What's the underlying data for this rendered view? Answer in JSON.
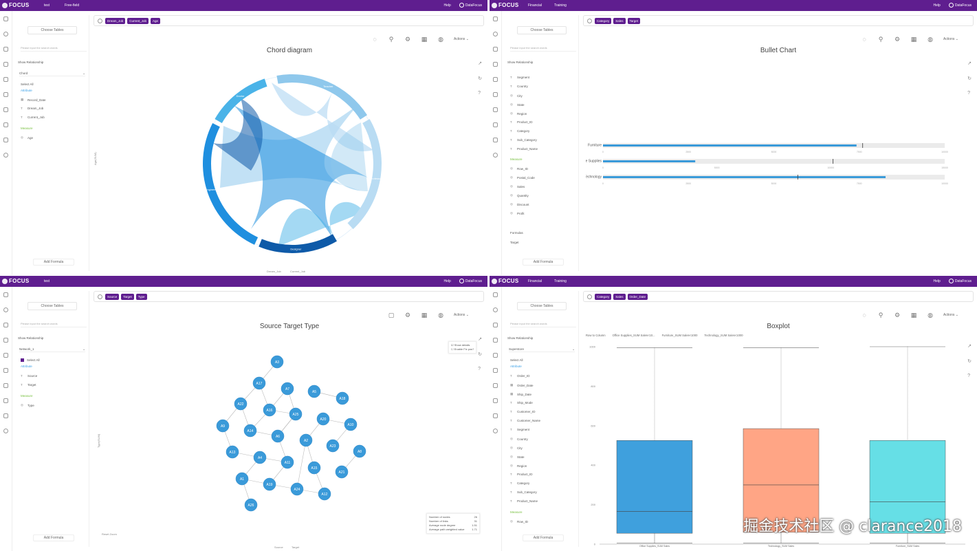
{
  "nav": {
    "logo": "FOCUS",
    "help": "Help",
    "user": "DataFocus"
  },
  "q1": {
    "tabs": [
      "test",
      "Free-field"
    ],
    "choose_tables": "Choose Tables",
    "search_placeholder": "Please input the search words",
    "show_relationship": "Show Relationship",
    "table_name": "Chord",
    "select_all": "Select All",
    "attribute_label": "Attribute",
    "measure_label": "Measure",
    "attributes": [
      "Record_Date",
      "Dream_Job",
      "Current_Job"
    ],
    "measures": [
      "Age"
    ],
    "add_formula": "Add Formula",
    "search_tags": [
      "Dream_Job",
      "Current_Job",
      "Age"
    ],
    "actions": "Actions",
    "chart_title": "Chord diagram",
    "y_axis": "Age(SUM)",
    "x_axis_1": "Dream_Job",
    "x_axis_2": "Current_Job"
  },
  "q2": {
    "tabs": [
      "Financial",
      "Training"
    ],
    "choose_tables": "Choose Tables",
    "search_placeholder": "Please input the search words",
    "show_relationship": "Show Relationship",
    "attributes": [
      "Segment",
      "Country",
      "City",
      "State",
      "Region",
      "Product_ID",
      "Category",
      "Sub_Category",
      "Product_Name"
    ],
    "measure_label": "Measure",
    "measures": [
      "Row_ID",
      "Postal_Code",
      "Sales",
      "Quantity",
      "Discount",
      "Profit"
    ],
    "formulas_label": "Formulas",
    "formula_item": "Target",
    "add_formula": "Add Formula",
    "search_tags": [
      "Category",
      "Sales",
      "Target"
    ],
    "actions": "Actions",
    "chart_title": "Bullet Chart"
  },
  "q3": {
    "tabs": [
      "test"
    ],
    "choose_tables": "Choose Tables",
    "search_placeholder": "Please input the search words",
    "show_relationship": "Show Relationship",
    "table_name": "Network_1",
    "select_all": "Select All",
    "attribute_label": "Attribute",
    "measure_label": "Measure",
    "attributes": [
      "Source",
      "Target"
    ],
    "measures": [
      "Type"
    ],
    "add_formula": "Add Formula",
    "search_tags": [
      "Source",
      "Target",
      "Type"
    ],
    "actions": "Actions",
    "chart_title": "Source Target Type",
    "show_details": "Show details",
    "enable_fix": "Enable Fix pos?",
    "y_axis": "Type(SUM)",
    "x_axis_1": "Source",
    "x_axis_2": "Target",
    "reset_zoom": "Reset Zoom",
    "stats": [
      {
        "label": "Number of nodes",
        "value": "26"
      },
      {
        "label": "Number of links",
        "value": "31"
      },
      {
        "label": "Average node degree",
        "value": "1.51"
      },
      {
        "label": "Average path weighted value",
        "value": "1.71"
      }
    ]
  },
  "q4": {
    "tabs": [
      "Financial",
      "Training"
    ],
    "choose_tables": "Choose Tables",
    "search_placeholder": "Please input the search words",
    "show_relationship": "Show Relationship",
    "table_name": "Superstore",
    "select_all": "Select All",
    "attribute_label": "Attribute",
    "measure_label": "Measure",
    "attributes": [
      "Order_ID",
      "Order_Date",
      "Ship_Date",
      "Ship_Mode",
      "Customer_ID",
      "Customer_Name",
      "Segment",
      "Country",
      "City",
      "State",
      "Region",
      "Product_ID",
      "Category",
      "Sub_Category",
      "Product_Name"
    ],
    "measures": [
      "Row_ID"
    ],
    "add_formula": "Add Formula",
    "search_tags": [
      "Category",
      "Sales",
      "Order_Date"
    ],
    "actions": "Actions",
    "chart_title": "Boxplot",
    "legend": [
      "Row to Column",
      "Office Supplies_SUM Sales<10...",
      "Furniture_SUM Sales<1000",
      "Technology_SUM Sales<1000"
    ]
  },
  "watermark": "掘金技术社区 @ clarance2018",
  "chart_data": [
    {
      "type": "chord",
      "title": "Chord diagram",
      "arcs": [
        "Designer",
        "Engineer",
        "Doctor",
        "Teacher",
        "Professor"
      ],
      "colors": [
        "#0e5aa8",
        "#1f8fdf",
        "#4ab3e8",
        "#8fc8ec",
        "#b9dcf3"
      ]
    },
    {
      "type": "bar",
      "subtype": "bullet",
      "title": "Bullet Chart",
      "categories": [
        "Furniture",
        "Office Supplies",
        "Technology"
      ],
      "series": [
        {
          "name": "Sales",
          "values": [
            7420,
            4050,
            8270
          ]
        },
        {
          "name": "Target",
          "values": [
            7600,
            10100,
            5700
          ]
        }
      ],
      "ranges": [
        10000,
        15000,
        10000
      ],
      "ticks": [
        [
          "0",
          "2500",
          "5000",
          "7500",
          "10000"
        ],
        [
          "0",
          "5000",
          "10000",
          "15000"
        ],
        [
          "0",
          "2500",
          "5000",
          "7500",
          "10000"
        ]
      ],
      "color": "#3a9ad9"
    },
    {
      "type": "network",
      "title": "Source Target Type",
      "nodes": [
        "A1",
        "A2",
        "A3",
        "A4",
        "A5",
        "A6",
        "A7",
        "A8",
        "A9",
        "A10",
        "A11",
        "A12",
        "A13",
        "A14",
        "A15",
        "A16",
        "A17",
        "A18",
        "A19",
        "A20",
        "A21",
        "A22",
        "A23",
        "A24",
        "A25",
        "A26"
      ],
      "color": "#3a9ad9"
    },
    {
      "type": "boxplot",
      "title": "Boxplot",
      "categories": [
        "Office Supplies_SUM Sales",
        "Technology_SUM Sales",
        "Furniture_SUM Sales"
      ],
      "boxes": [
        {
          "min": 5,
          "q1": 55,
          "median": 165,
          "q3": 525,
          "max": 995,
          "color": "#3fa0dd"
        },
        {
          "min": 5,
          "q1": 60,
          "median": 300,
          "q3": 585,
          "max": 995,
          "color": "#ffa585"
        },
        {
          "min": 5,
          "q1": 55,
          "median": 215,
          "q3": 525,
          "max": 1000,
          "color": "#66dfe6"
        }
      ],
      "yticks": [
        "0",
        "200",
        "400",
        "600",
        "800",
        "1000"
      ],
      "ylim": [
        0,
        1000
      ]
    }
  ]
}
